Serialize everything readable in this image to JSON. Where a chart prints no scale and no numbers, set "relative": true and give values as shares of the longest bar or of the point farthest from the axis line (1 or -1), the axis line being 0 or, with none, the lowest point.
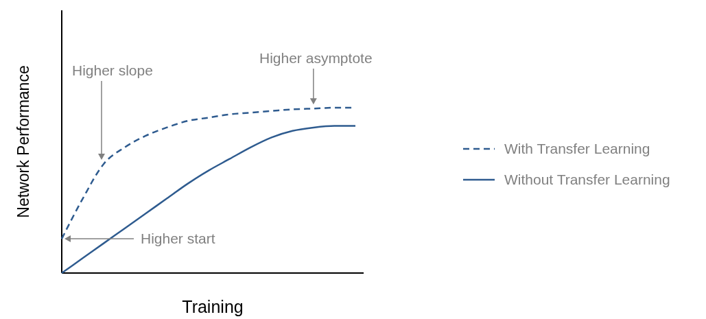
{
  "chart_data": {
    "type": "line",
    "relative": true,
    "xlabel": "Training",
    "ylabel": "Network Performance",
    "legend": "right",
    "categories": [
      null,
      null,
      null,
      null,
      null,
      null,
      null,
      null,
      null,
      null,
      null,
      null,
      null,
      null,
      null
    ],
    "series": [
      {
        "name": "With Transfer Learning",
        "color": "#2e5b8f",
        "line_style": "dashed",
        "values": [
          0.207,
          0.45,
          0.66,
          0.76,
          0.83,
          0.88,
          0.92,
          0.94,
          0.96,
          0.97,
          0.98,
          0.99,
          0.995,
          1,
          1
        ]
      },
      {
        "name": "Without Transfer Learning",
        "color": "#2e5b8f",
        "line_style": "solid",
        "values": [
          0,
          0.09,
          0.18,
          0.27,
          0.36,
          0.45,
          0.54,
          0.62,
          0.69,
          0.76,
          0.82,
          0.86,
          0.88,
          0.89,
          0.89
        ]
      }
    ],
    "annotations": [
      "Higher slope",
      "Higher asymptote",
      "Higher start"
    ]
  }
}
